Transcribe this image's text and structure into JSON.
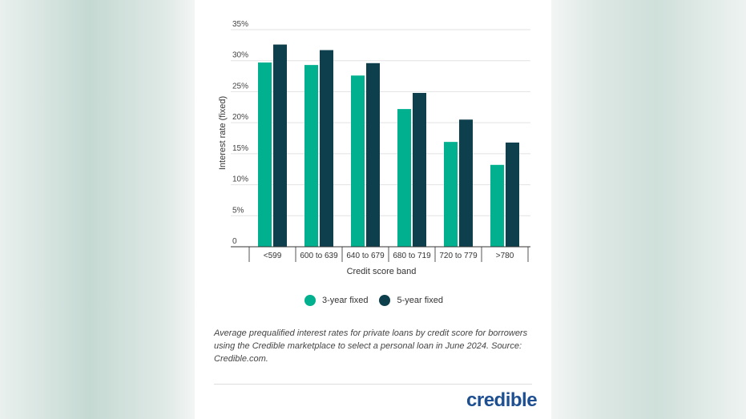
{
  "chart_data": {
    "type": "bar",
    "title": "",
    "xlabel": "Credit score band",
    "ylabel": "Interest rate (fixed)",
    "ylim": [
      0,
      35
    ],
    "yticks": [
      "0",
      "5%",
      "10%",
      "15%",
      "20%",
      "25%",
      "30%",
      "35%"
    ],
    "categories": [
      "<599",
      "600 to 639",
      "640 to 679",
      "680 to 719",
      "720 to 779",
      ">780"
    ],
    "series": [
      {
        "name": "3-year fixed",
        "color": "#00b08f",
        "values": [
          29.7,
          29.3,
          27.6,
          22.2,
          16.9,
          13.2
        ]
      },
      {
        "name": "5-year fixed",
        "color": "#0e3f4d",
        "values": [
          32.6,
          31.7,
          29.6,
          24.8,
          20.5,
          16.8
        ]
      }
    ],
    "grid": true,
    "legend_position": "bottom"
  },
  "caption": "Average prequalified interest rates for private loans by credit score for borrowers using the Credible marketplace to select a personal loan in June 2024. Source: Credible.com.",
  "logo": "credible"
}
